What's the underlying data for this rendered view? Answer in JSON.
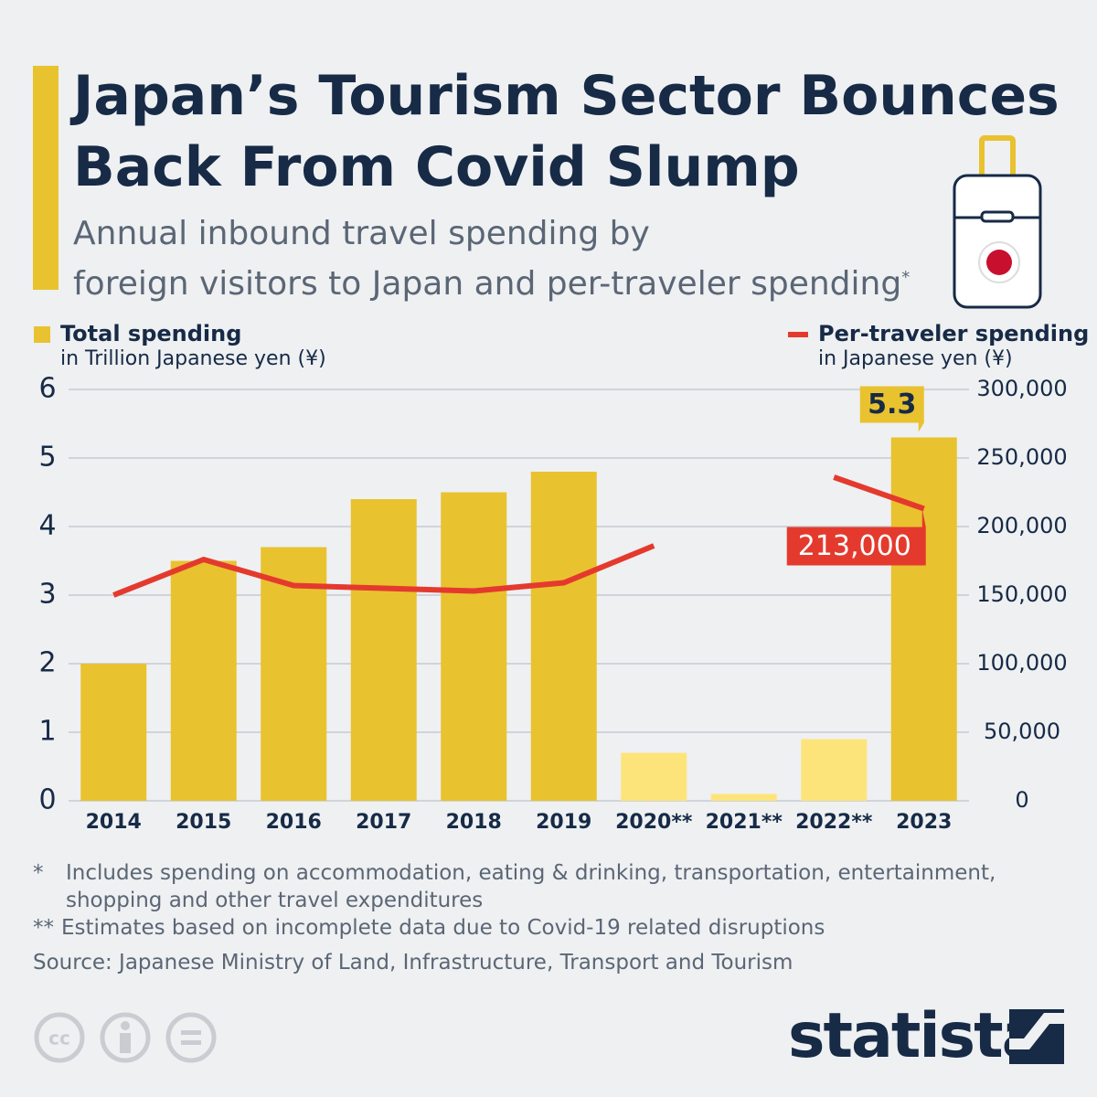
{
  "chart_data": {
    "type": "bar_line",
    "title": [
      "Japan’s Tourism Sector Bounces",
      "Back From Covid Slump"
    ],
    "subtitle": [
      "Annual inbound travel spending by",
      "foreign visitors to Japan and per-traveler spending"
    ],
    "subtitle_mark": "*",
    "ylabel": "in Trillion Japanese yen (¥)",
    "y2label": "in Japanese yen (¥)",
    "categories": [
      "2014",
      "2015",
      "2016",
      "2017",
      "2018",
      "2019",
      "2020**",
      "2021**",
      "2022**",
      "2023"
    ],
    "series": [
      {
        "name": "Total spending",
        "type": "bar",
        "color": "#e9c22f",
        "colors": [
          "#e9c22f",
          "#e9c22f",
          "#e9c22f",
          "#e9c22f",
          "#e9c22f",
          "#e9c22f",
          "#fde47a",
          "#fde47a",
          "#fde47a",
          "#e9c22f"
        ],
        "values": [
          2.0,
          3.5,
          3.7,
          4.4,
          4.5,
          4.8,
          0.7,
          0.1,
          0.9,
          5.3
        ],
        "value_labels": [
          null,
          null,
          null,
          null,
          null,
          null,
          null,
          null,
          null,
          "5.3"
        ]
      },
      {
        "name": "Per-traveler spending",
        "type": "line",
        "axis": "y2",
        "color": "#e43a2d",
        "values": [
          150000,
          176000,
          157000,
          155000,
          153000,
          159000,
          186000,
          null,
          236000,
          213000
        ],
        "value_labels": [
          null,
          null,
          null,
          null,
          null,
          null,
          null,
          null,
          null,
          "213,000"
        ]
      }
    ],
    "ylim": [
      0,
      6
    ],
    "yticks": [
      0,
      1,
      2,
      3,
      4,
      5,
      6
    ],
    "y2lim": [
      0,
      300000
    ],
    "y2ticks": [
      0,
      {
        "value": 50000,
        "label": "50,000"
      },
      {
        "value": 100000,
        "label": "100,000"
      },
      {
        "value": 150000,
        "label": "150,000"
      },
      {
        "value": 200000,
        "label": "200,000"
      },
      {
        "value": 250000,
        "label": "250,000"
      },
      {
        "value": 300000,
        "label": "300,000"
      }
    ],
    "grid": true,
    "notes": [
      {
        "mark": "*",
        "text": "Includes spending on accommodation, eating & drinking, transportation, entertainment, shopping and other travel expenditures"
      },
      {
        "mark": "**",
        "text": "Estimates based on incomplete data due to Covid-19 related disruptions"
      }
    ],
    "source": "Source: Japanese Ministry of Land, Infrastructure, Transport and Tourism",
    "brand": "statista"
  }
}
